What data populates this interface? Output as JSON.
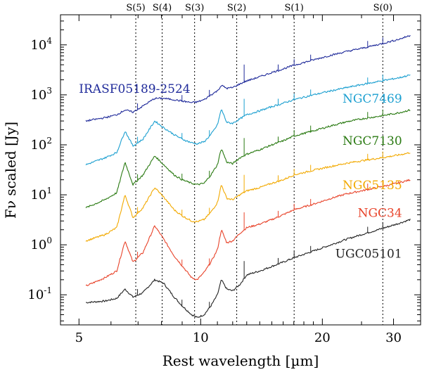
{
  "chart_data": {
    "type": "line",
    "title": "",
    "xlabel": "Rest wavelength [µm]",
    "ylabel": "Fν scaled [Jy]",
    "xscale": "log",
    "yscale": "log",
    "xlim": [
      4.5,
      35
    ],
    "ylim": [
      0.025,
      40000
    ],
    "grid": false,
    "legend": "inline labels at right of each spectrum",
    "x_ticks": [
      {
        "value": 5,
        "label": "5"
      },
      {
        "value": 10,
        "label": "10"
      },
      {
        "value": 20,
        "label": "20"
      },
      {
        "value": 30,
        "label": "30"
      }
    ],
    "y_ticks": [
      {
        "value": 0.1,
        "base": "10",
        "exp": "-1"
      },
      {
        "value": 1,
        "base": "10",
        "exp": "0"
      },
      {
        "value": 10,
        "base": "10",
        "exp": "1"
      },
      {
        "value": 100,
        "base": "10",
        "exp": "2"
      },
      {
        "value": 1000,
        "base": "10",
        "exp": "3"
      },
      {
        "value": 10000,
        "base": "10",
        "exp": "4"
      }
    ],
    "reference_lines": [
      {
        "label": "S(5)",
        "x": 6.91
      },
      {
        "label": "S(4)",
        "x": 8.03
      },
      {
        "label": "S(3)",
        "x": 9.66
      },
      {
        "label": "S(2)",
        "x": 12.28
      },
      {
        "label": "S(1)",
        "x": 17.03
      },
      {
        "label": "S(0)",
        "x": 28.22
      }
    ],
    "series": [
      {
        "name": "UGC05101",
        "color": "#222222",
        "x": [
          5.2,
          5.8,
          6.2,
          6.5,
          6.8,
          7.2,
          7.7,
          8.1,
          8.6,
          9.0,
          9.5,
          9.8,
          10.2,
          10.6,
          11.0,
          11.25,
          11.6,
          12.0,
          12.5,
          13.0,
          14.0,
          15.0,
          16.0,
          17.0,
          19.0,
          21.0,
          23.0,
          25.0,
          28.0,
          31.0,
          33.0
        ],
        "y": [
          0.07,
          0.075,
          0.085,
          0.13,
          0.09,
          0.11,
          0.2,
          0.17,
          0.09,
          0.06,
          0.04,
          0.035,
          0.04,
          0.06,
          0.1,
          0.2,
          0.13,
          0.12,
          0.16,
          0.25,
          0.3,
          0.37,
          0.45,
          0.55,
          0.75,
          1.0,
          1.3,
          1.6,
          2.1,
          2.7,
          3.2
        ]
      },
      {
        "name": "NGC34",
        "color": "#e8432a",
        "x": [
          5.2,
          5.8,
          6.2,
          6.5,
          6.8,
          7.2,
          7.7,
          8.1,
          8.6,
          9.0,
          9.5,
          9.8,
          10.2,
          10.6,
          11.0,
          11.25,
          11.6,
          12.0,
          12.5,
          13.0,
          14.0,
          15.0,
          16.0,
          17.0,
          19.0,
          21.0,
          23.0,
          25.0,
          28.0,
          31.0,
          33.0
        ],
        "y": [
          0.15,
          0.22,
          0.3,
          1.2,
          0.45,
          0.7,
          2.4,
          1.3,
          0.6,
          0.38,
          0.22,
          0.2,
          0.28,
          0.45,
          0.8,
          2.0,
          1.1,
          1.2,
          1.7,
          2.2,
          2.6,
          3.2,
          4.0,
          5.0,
          6.5,
          8.5,
          10.5,
          12.0,
          14.5,
          17.5,
          20.0
        ]
      },
      {
        "name": "NGC5135",
        "color": "#f2a900",
        "x": [
          5.2,
          5.8,
          6.2,
          6.5,
          6.8,
          7.2,
          7.7,
          8.1,
          8.6,
          9.0,
          9.5,
          9.8,
          10.2,
          10.6,
          11.0,
          11.25,
          11.6,
          12.0,
          12.5,
          13.0,
          14.0,
          15.0,
          16.0,
          17.0,
          19.0,
          21.0,
          23.0,
          25.0,
          28.0,
          31.0,
          33.0
        ],
        "y": [
          1.2,
          1.6,
          2.2,
          10,
          3.5,
          5.5,
          14,
          9.0,
          5.0,
          3.8,
          3.0,
          2.9,
          3.2,
          4.5,
          7.0,
          16,
          8.5,
          8.0,
          10,
          12,
          14,
          17,
          20,
          25,
          31,
          37,
          43,
          48,
          55,
          63,
          70
        ]
      },
      {
        "name": "NGC7130",
        "color": "#2a7a12",
        "x": [
          5.2,
          5.8,
          6.2,
          6.5,
          6.8,
          7.2,
          7.7,
          8.1,
          8.6,
          9.0,
          9.5,
          9.8,
          10.2,
          10.6,
          11.0,
          11.25,
          11.6,
          12.0,
          12.5,
          13.0,
          14.0,
          15.0,
          16.0,
          17.0,
          19.0,
          21.0,
          23.0,
          25.0,
          28.0,
          31.0,
          33.0
        ],
        "y": [
          5.5,
          8.0,
          11,
          45,
          16,
          25,
          60,
          40,
          25,
          20,
          17,
          16,
          17,
          25,
          40,
          85,
          45,
          42,
          55,
          65,
          80,
          100,
          120,
          150,
          190,
          240,
          290,
          330,
          380,
          440,
          500
        ]
      },
      {
        "name": "NGC7469",
        "color": "#1b9fd0",
        "x": [
          5.2,
          5.8,
          6.2,
          6.5,
          6.8,
          7.2,
          7.7,
          8.1,
          8.6,
          9.0,
          9.5,
          9.8,
          10.2,
          10.6,
          11.0,
          11.25,
          11.6,
          12.0,
          12.5,
          13.0,
          14.0,
          15.0,
          16.0,
          17.0,
          19.0,
          21.0,
          23.0,
          25.0,
          28.0,
          31.0,
          33.0
        ],
        "y": [
          40,
          55,
          70,
          190,
          95,
          130,
          300,
          220,
          160,
          130,
          110,
          105,
          115,
          160,
          250,
          520,
          280,
          270,
          330,
          400,
          480,
          580,
          680,
          800,
          1000,
          1200,
          1400,
          1600,
          1900,
          2200,
          2500
        ]
      },
      {
        "name": "IRASF05189-2524",
        "color": "#1f2a9a",
        "x": [
          5.2,
          5.8,
          6.2,
          6.5,
          6.8,
          7.2,
          7.7,
          8.1,
          8.6,
          9.0,
          9.5,
          9.8,
          10.2,
          10.6,
          11.0,
          11.25,
          11.6,
          12.0,
          12.5,
          13.0,
          14.0,
          15.0,
          16.0,
          17.0,
          19.0,
          21.0,
          23.0,
          25.0,
          28.0,
          31.0,
          33.0
        ],
        "y": [
          300,
          350,
          400,
          500,
          450,
          600,
          850,
          850,
          800,
          750,
          700,
          720,
          800,
          1000,
          1200,
          1550,
          1350,
          1400,
          1650,
          1900,
          2300,
          2800,
          3300,
          3900,
          5000,
          6200,
          7400,
          8500,
          10500,
          13000,
          15500
        ]
      }
    ]
  }
}
